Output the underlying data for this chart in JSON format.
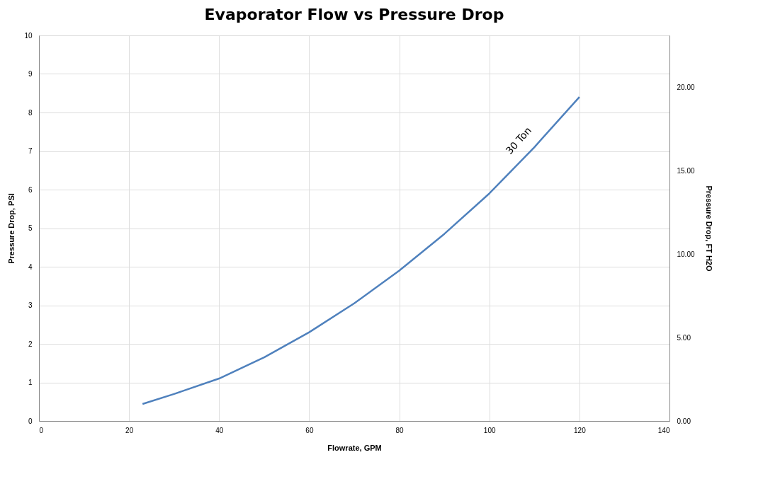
{
  "chart_data": {
    "type": "line",
    "title": "Evaporator Flow vs Pressure Drop",
    "xlabel": "Flowrate, GPM",
    "ylabel": "Pressure Drop, PSI",
    "y2label": "Pressure Drop, FT H2O",
    "x": [
      23,
      30,
      40,
      50,
      60,
      70,
      80,
      90,
      100,
      110,
      120
    ],
    "series": [
      {
        "name": "30 Ton",
        "color": "#4f81bd",
        "values": [
          0.44,
          0.7,
          1.1,
          1.65,
          2.3,
          3.05,
          3.9,
          4.85,
          5.9,
          7.1,
          8.4
        ]
      }
    ],
    "xlim": [
      0,
      140
    ],
    "xticks": [
      0,
      20,
      40,
      60,
      80,
      100,
      120,
      140
    ],
    "ylim": [
      0,
      10
    ],
    "yticks": [
      0,
      1,
      2,
      3,
      4,
      5,
      6,
      7,
      8,
      9,
      10
    ],
    "y2lim": [
      0,
      23.1
    ],
    "y2ticks": [
      {
        "value": 0,
        "label": "0.00"
      },
      {
        "value": 5,
        "label": "5.00"
      },
      {
        "value": 10,
        "label": "10.00"
      },
      {
        "value": 15,
        "label": "15.00"
      },
      {
        "value": 20,
        "label": "20.00"
      }
    ],
    "grid": true,
    "legend": false,
    "marker": "none",
    "line_style": "solid"
  }
}
